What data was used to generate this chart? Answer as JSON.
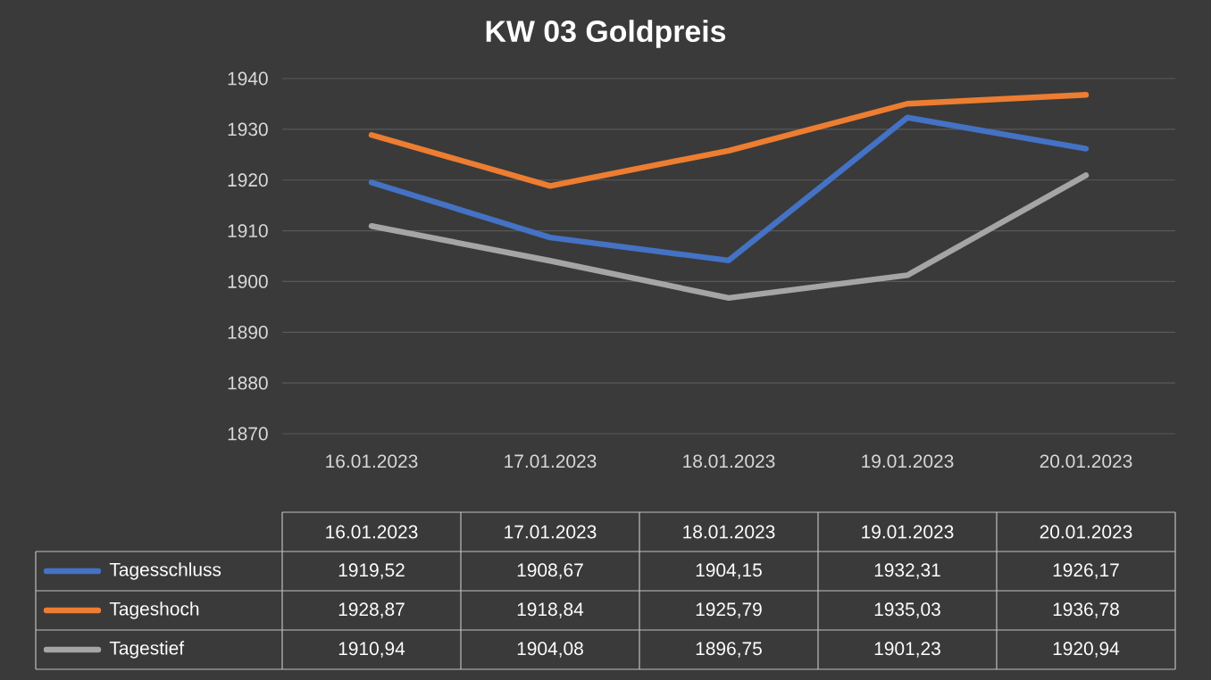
{
  "chart_data": {
    "type": "line",
    "title": "KW 03 Goldpreis",
    "categories": [
      "16.01.2023",
      "17.01.2023",
      "18.01.2023",
      "19.01.2023",
      "20.01.2023"
    ],
    "series": [
      {
        "name": "Tagesschluss",
        "color": "#4472c4",
        "values": [
          1919.52,
          1908.67,
          1904.15,
          1932.31,
          1926.17
        ],
        "value_labels": [
          "1919,52",
          "1908,67",
          "1904,15",
          "1932,31",
          "1926,17"
        ]
      },
      {
        "name": "Tageshoch",
        "color": "#ed7d31",
        "values": [
          1928.87,
          1918.84,
          1925.79,
          1935.03,
          1936.78
        ],
        "value_labels": [
          "1928,87",
          "1918,84",
          "1925,79",
          "1935,03",
          "1936,78"
        ]
      },
      {
        "name": "Tagestief",
        "color": "#a5a5a5",
        "values": [
          1910.94,
          1904.08,
          1896.75,
          1901.23,
          1920.94
        ],
        "value_labels": [
          "1910,94",
          "1904,08",
          "1896,75",
          "1901,23",
          "1920,94"
        ]
      }
    ],
    "ylim": [
      1870,
      1940
    ],
    "yticks": [
      1870,
      1880,
      1890,
      1900,
      1910,
      1920,
      1930,
      1940
    ],
    "grid": "y",
    "legend": "bottom",
    "marker": "none",
    "line_style": "solid"
  }
}
